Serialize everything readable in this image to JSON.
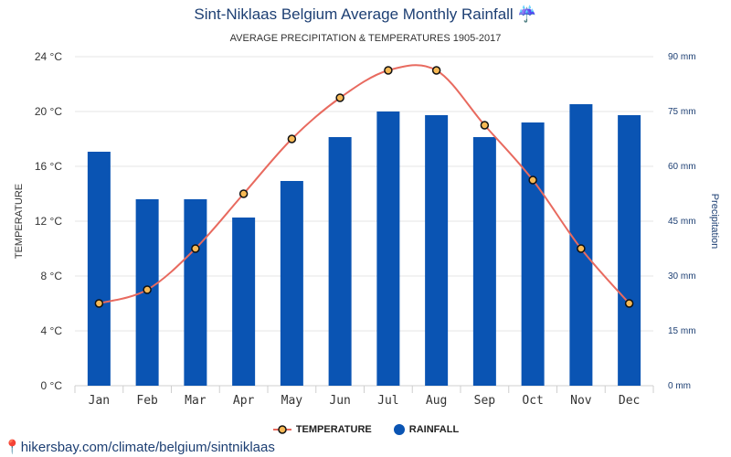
{
  "title": "Sint-Niklaas Belgium Average Monthly Rainfall ☔",
  "subtitle": "AVERAGE PRECIPITATION & TEMPERATURES 1905-2017",
  "source_link": "hikersbay.com/climate/belgium/sintniklaas",
  "colors": {
    "temperature_line": "#e86a5f",
    "temperature_marker": "#f7b955",
    "rainfall_bar": "#0a54b3",
    "title": "#1d3f73",
    "right_axis": "#1d3f73"
  },
  "legend": {
    "temperature": "TEMPERATURE",
    "rainfall": "RAINFALL"
  },
  "chart_data": {
    "type": "bar",
    "title": "Sint-Niklaas Belgium Average Monthly Rainfall ☔",
    "subtitle": "AVERAGE PRECIPITATION & TEMPERATURES 1905-2017",
    "categories": [
      "Jan",
      "Feb",
      "Mar",
      "Apr",
      "May",
      "Jun",
      "Jul",
      "Aug",
      "Sep",
      "Oct",
      "Nov",
      "Dec"
    ],
    "series": [
      {
        "name": "RAINFALL",
        "type": "bar",
        "axis": "right",
        "values": [
          64,
          51,
          51,
          46,
          56,
          68,
          75,
          74,
          68,
          72,
          77,
          74
        ]
      },
      {
        "name": "TEMPERATURE",
        "type": "line",
        "axis": "left",
        "values": [
          6,
          7,
          10,
          14,
          18,
          21,
          23,
          23,
          19,
          15,
          10,
          6
        ]
      }
    ],
    "ylabel_left": "TEMPERATURE",
    "ylabel_right": "Precipitation",
    "ylim_left": [
      0,
      24
    ],
    "ylim_right": [
      0,
      90
    ],
    "left_ticks": [
      "0 °C",
      "4 °C",
      "8 °C",
      "12 °C",
      "16 °C",
      "20 °C",
      "24 °C"
    ],
    "right_ticks": [
      "0 mm",
      "15 mm",
      "30 mm",
      "45 mm",
      "60 mm",
      "75 mm",
      "90 mm"
    ],
    "grid": true,
    "legend_position": "bottom"
  }
}
